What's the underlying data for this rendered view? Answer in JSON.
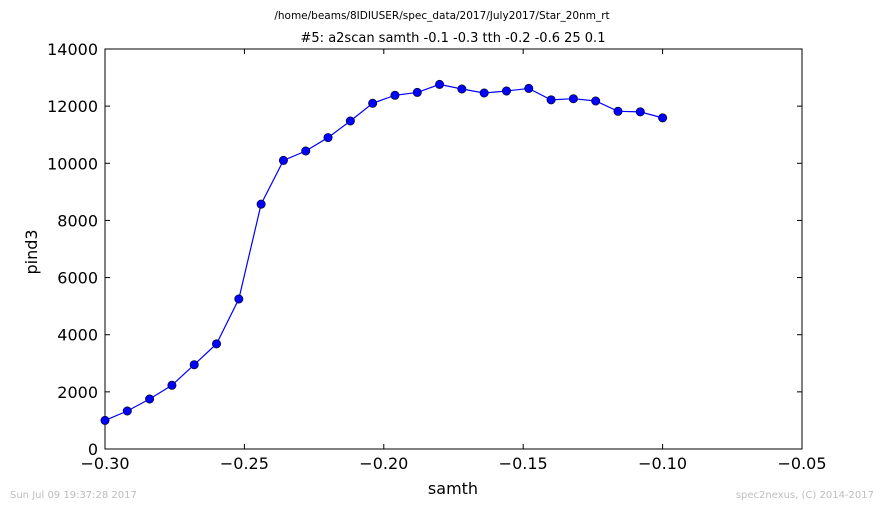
{
  "header": {
    "path": "/home/beams/8IDIUSER/spec_data/2017/July2017/Star_20nm_rt",
    "scan_title": "#5: a2scan  samth -0.1 -0.3  tth -0.2 -0.6  25 0.1"
  },
  "footer": {
    "timestamp": "Sun Jul 09 19:37:28 2017",
    "credit": "spec2nexus, (C) 2014-2017"
  },
  "chart_data": {
    "type": "line",
    "title": "#5: a2scan  samth -0.1 -0.3  tth -0.2 -0.6  25 0.1",
    "xlabel": "samth",
    "ylabel": "pind3",
    "xlim": [
      -0.3,
      -0.05
    ],
    "ylim": [
      0,
      14000
    ],
    "xticks": [
      -0.3,
      -0.25,
      -0.2,
      -0.15,
      -0.1,
      -0.05
    ],
    "xtick_labels": [
      "−0.30",
      "−0.25",
      "−0.20",
      "−0.15",
      "−0.10",
      "−0.05"
    ],
    "yticks": [
      0,
      2000,
      4000,
      6000,
      8000,
      10000,
      12000,
      14000
    ],
    "ytick_labels": [
      "0",
      "2000",
      "4000",
      "6000",
      "8000",
      "10000",
      "12000",
      "14000"
    ],
    "grid": false,
    "line_color": "#0000ff",
    "marker_color": "#0000ff",
    "marker": "circle",
    "series": [
      {
        "x": [
          -0.3,
          -0.292,
          -0.284,
          -0.276,
          -0.268,
          -0.26,
          -0.252,
          -0.244,
          -0.236,
          -0.228,
          -0.22,
          -0.212,
          -0.204,
          -0.196,
          -0.188,
          -0.18,
          -0.172,
          -0.164,
          -0.156,
          -0.148,
          -0.14,
          -0.132,
          -0.124,
          -0.116,
          -0.108,
          -0.1
        ],
        "y": [
          1000,
          1330,
          1750,
          2230,
          2950,
          3680,
          5250,
          8570,
          10100,
          10430,
          10900,
          11480,
          12100,
          12380,
          12480,
          12760,
          12600,
          12460,
          12530,
          12620,
          12220,
          12260,
          12180,
          11820,
          11800,
          11590
        ]
      }
    ]
  }
}
